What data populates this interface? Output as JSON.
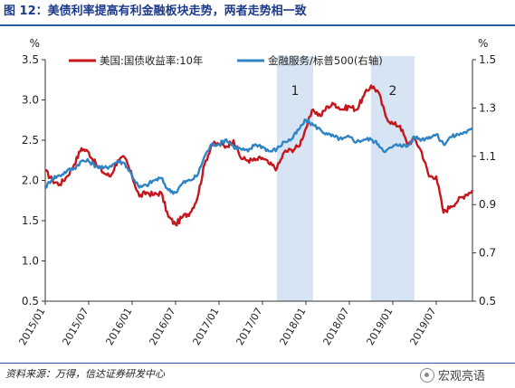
{
  "header": {
    "title": "图 12：美债利率提高有利金融板块走势，两者走势相一致"
  },
  "footer": {
    "source": "资料来源：万得，信达证券研发中心",
    "watermark": "宏观亮语"
  },
  "colors": {
    "us_yield": "#c4161c",
    "financials": "#2f84c6",
    "shade": "#d6e4f4",
    "title": "#1b3a8a"
  },
  "chart_data": {
    "type": "line",
    "title": "",
    "left_axis": {
      "unit": "%",
      "ylim": [
        0.5,
        3.5
      ],
      "ticks": [
        "0.5",
        "1.0",
        "1.5",
        "2.0",
        "2.5",
        "3.0",
        "3.5"
      ]
    },
    "right_axis": {
      "unit": "%",
      "ylim": [
        0.5,
        1.5
      ],
      "ticks": [
        "0.5",
        "0.7",
        "0.9",
        "1.1",
        "1.3",
        "1.5"
      ]
    },
    "x_ticks": [
      "2015/01",
      "2015/07",
      "2016/01",
      "2016/07",
      "2017/01",
      "2017/07",
      "2018/01",
      "2018/07",
      "2019/01",
      "2019/07"
    ],
    "x_range": [
      "2015/01",
      "2019/12"
    ],
    "legend_position": "top",
    "shaded_regions": [
      {
        "label": "1",
        "start": "2017/09",
        "end": "2018/02"
      },
      {
        "label": "2",
        "start": "2018/10",
        "end": "2019/04"
      }
    ],
    "series": [
      {
        "name": "美国:国债收益率:10年",
        "axis": "left",
        "points": [
          [
            "2015/01",
            2.12
          ],
          [
            "2015/02",
            2.0
          ],
          [
            "2015/03",
            1.95
          ],
          [
            "2015/04",
            2.05
          ],
          [
            "2015/05",
            2.2
          ],
          [
            "2015/06",
            2.4
          ],
          [
            "2015/07",
            2.35
          ],
          [
            "2015/08",
            2.2
          ],
          [
            "2015/09",
            2.1
          ],
          [
            "2015/10",
            2.05
          ],
          [
            "2015/11",
            2.25
          ],
          [
            "2015/12",
            2.28
          ],
          [
            "2016/01",
            2.05
          ],
          [
            "2016/02",
            1.8
          ],
          [
            "2016/03",
            1.85
          ],
          [
            "2016/04",
            1.82
          ],
          [
            "2016/05",
            1.85
          ],
          [
            "2016/06",
            1.55
          ],
          [
            "2016/07",
            1.45
          ],
          [
            "2016/08",
            1.55
          ],
          [
            "2016/09",
            1.6
          ],
          [
            "2016/10",
            1.78
          ],
          [
            "2016/11",
            2.2
          ],
          [
            "2016/12",
            2.45
          ],
          [
            "2017/01",
            2.45
          ],
          [
            "2017/02",
            2.42
          ],
          [
            "2017/03",
            2.5
          ],
          [
            "2017/04",
            2.28
          ],
          [
            "2017/05",
            2.25
          ],
          [
            "2017/06",
            2.25
          ],
          [
            "2017/07",
            2.28
          ],
          [
            "2017/08",
            2.2
          ],
          [
            "2017/09",
            2.15
          ],
          [
            "2017/10",
            2.35
          ],
          [
            "2017/11",
            2.38
          ],
          [
            "2017/12",
            2.42
          ],
          [
            "2018/01",
            2.65
          ],
          [
            "2018/02",
            2.88
          ],
          [
            "2018/03",
            2.8
          ],
          [
            "2018/04",
            2.92
          ],
          [
            "2018/05",
            2.95
          ],
          [
            "2018/06",
            2.88
          ],
          [
            "2018/07",
            2.92
          ],
          [
            "2018/08",
            2.88
          ],
          [
            "2018/09",
            3.05
          ],
          [
            "2018/10",
            3.18
          ],
          [
            "2018/11",
            3.1
          ],
          [
            "2018/12",
            2.8
          ],
          [
            "2019/01",
            2.7
          ],
          [
            "2019/02",
            2.68
          ],
          [
            "2019/03",
            2.45
          ],
          [
            "2019/04",
            2.52
          ],
          [
            "2019/05",
            2.35
          ],
          [
            "2019/06",
            2.05
          ],
          [
            "2019/07",
            2.05
          ],
          [
            "2019/08",
            1.6
          ],
          [
            "2019/09",
            1.68
          ],
          [
            "2019/10",
            1.75
          ],
          [
            "2019/11",
            1.82
          ],
          [
            "2019/12",
            1.88
          ]
        ]
      },
      {
        "name": "金融服务/标普500(右轴)",
        "axis": "right",
        "points": [
          [
            "2015/01",
            0.97
          ],
          [
            "2015/02",
            1.01
          ],
          [
            "2015/03",
            1.02
          ],
          [
            "2015/04",
            1.04
          ],
          [
            "2015/05",
            1.05
          ],
          [
            "2015/06",
            1.08
          ],
          [
            "2015/07",
            1.08
          ],
          [
            "2015/08",
            1.06
          ],
          [
            "2015/09",
            1.05
          ],
          [
            "2015/10",
            1.06
          ],
          [
            "2015/11",
            1.08
          ],
          [
            "2015/12",
            1.07
          ],
          [
            "2016/01",
            1.02
          ],
          [
            "2016/02",
            0.97
          ],
          [
            "2016/03",
            0.98
          ],
          [
            "2016/04",
            1.0
          ],
          [
            "2016/05",
            1.01
          ],
          [
            "2016/06",
            0.96
          ],
          [
            "2016/07",
            0.95
          ],
          [
            "2016/08",
            0.99
          ],
          [
            "2016/09",
            1.0
          ],
          [
            "2016/10",
            1.02
          ],
          [
            "2016/11",
            1.1
          ],
          [
            "2016/12",
            1.15
          ],
          [
            "2017/01",
            1.15
          ],
          [
            "2017/02",
            1.17
          ],
          [
            "2017/03",
            1.14
          ],
          [
            "2017/04",
            1.13
          ],
          [
            "2017/05",
            1.12
          ],
          [
            "2017/06",
            1.15
          ],
          [
            "2017/07",
            1.14
          ],
          [
            "2017/08",
            1.12
          ],
          [
            "2017/09",
            1.13
          ],
          [
            "2017/10",
            1.16
          ],
          [
            "2017/11",
            1.17
          ],
          [
            "2017/12",
            1.21
          ],
          [
            "2018/01",
            1.25
          ],
          [
            "2018/02",
            1.23
          ],
          [
            "2018/03",
            1.21
          ],
          [
            "2018/04",
            1.19
          ],
          [
            "2018/05",
            1.18
          ],
          [
            "2018/06",
            1.17
          ],
          [
            "2018/07",
            1.18
          ],
          [
            "2018/08",
            1.16
          ],
          [
            "2018/09",
            1.17
          ],
          [
            "2018/10",
            1.17
          ],
          [
            "2018/11",
            1.15
          ],
          [
            "2018/12",
            1.12
          ],
          [
            "2019/01",
            1.14
          ],
          [
            "2019/02",
            1.15
          ],
          [
            "2019/03",
            1.14
          ],
          [
            "2019/04",
            1.18
          ],
          [
            "2019/05",
            1.17
          ],
          [
            "2019/06",
            1.18
          ],
          [
            "2019/07",
            1.19
          ],
          [
            "2019/08",
            1.15
          ],
          [
            "2019/09",
            1.18
          ],
          [
            "2019/10",
            1.19
          ],
          [
            "2019/11",
            1.2
          ],
          [
            "2019/12",
            1.21
          ]
        ]
      }
    ]
  }
}
